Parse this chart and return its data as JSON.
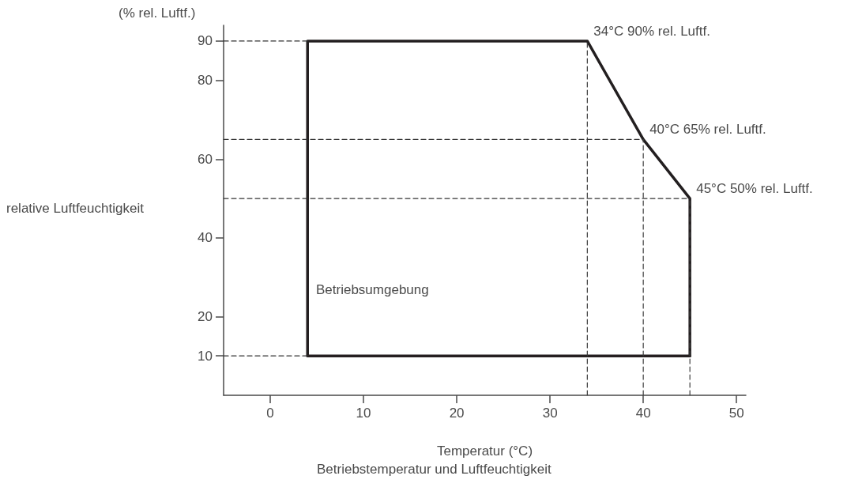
{
  "chart_data": {
    "type": "line",
    "xlabel": "Temperatur (°C)",
    "ylabel": "relative Luftfeuchtigkeit",
    "xlim": [
      -5,
      51
    ],
    "xticks": [
      0,
      10,
      20,
      30,
      40,
      50
    ],
    "ylim": [
      0,
      94
    ],
    "yticks": [
      10,
      20,
      40,
      60,
      80,
      90
    ],
    "grid": false,
    "marker": "none",
    "series": [
      {
        "color": "#231f20",
        "line_style": "solid",
        "x": [
          4,
          4,
          34,
          40,
          45,
          45
        ],
        "values": [
          10,
          90,
          90,
          65,
          50,
          10
        ]
      },
      {
        "color": "#251f20",
        "line_style": "solid",
        "x": [
          4,
          45
        ],
        "values": [
          10,
          10
        ]
      },
      {
        "color": "#303030",
        "line_style": "dashed",
        "x": [
          -5,
          4
        ],
        "values": [
          90,
          90
        ]
      },
      {
        "color": "#323232",
        "line_style": "dashed",
        "x": [
          -5,
          40
        ],
        "values": [
          65,
          65
        ]
      },
      {
        "color": "#343434",
        "line_style": "dashed",
        "x": [
          -5,
          45
        ],
        "values": [
          50,
          50
        ]
      },
      {
        "color": "#363636",
        "line_style": "dashed",
        "x": [
          -5,
          4
        ],
        "values": [
          10,
          10
        ]
      },
      {
        "color": "#383838",
        "line_style": "dashed",
        "x": [
          34,
          34
        ],
        "values": [
          0,
          90
        ]
      },
      {
        "color": "#3c3c3c",
        "line_style": "dashed",
        "x": [
          40,
          40
        ],
        "values": [
          0,
          65
        ]
      },
      {
        "color": "#3e3e3e",
        "line_style": "dashed",
        "x": [
          45,
          45
        ],
        "values": [
          0,
          50
        ]
      }
    ],
    "annotations": [
      "(% rel. Luftf.)",
      {
        "text": "34°C 90% rel. Luftf.",
        "x": 34,
        "y": 90
      },
      {
        "text": "40°C 65% rel. Luftf.",
        "x": 40,
        "y": 65
      },
      {
        "text": "45°C 50% rel. Luftf.",
        "x": 45,
        "y": 50
      },
      "Betriebsumgebung",
      "Betriebstemperatur und Luftfeuchtigkeit"
    ]
  }
}
